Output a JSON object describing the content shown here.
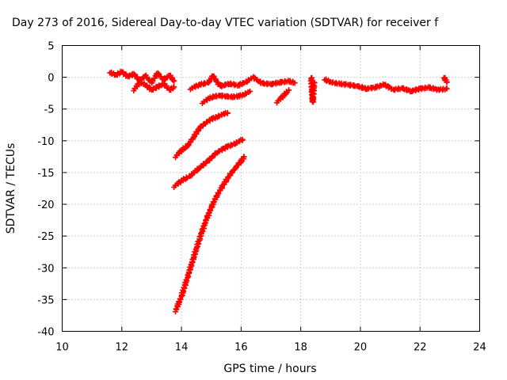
{
  "chart_data": {
    "type": "scatter",
    "title": "Day 273 of 2016, Sidereal Day-to-day VTEC variation (SDTVAR) for receiver f",
    "xlabel": "GPS time / hours",
    "ylabel": "SDTVAR / TECUs",
    "xlim": [
      10,
      24
    ],
    "ylim": [
      -40,
      5
    ],
    "xticks": [
      "10",
      "12",
      "14",
      "16",
      "18",
      "20",
      "22",
      "24"
    ],
    "yticks": [
      "5",
      "0",
      "-5",
      "-10",
      "-15",
      "-20",
      "-25",
      "-30",
      "-35",
      "-40"
    ],
    "grid": true,
    "marker": "plus",
    "color": "#ff0000",
    "series": [
      {
        "x": [
          11.6,
          11.8,
          12.0,
          12.2,
          12.4,
          12.6,
          12.8,
          13.0,
          13.2,
          13.4,
          13.6,
          13.75
        ],
        "y": [
          0.8,
          0.3,
          0.9,
          0.1,
          0.5,
          -0.5,
          0.2,
          -0.8,
          0.6,
          -0.4,
          0.3,
          -0.6
        ]
      },
      {
        "x": [
          12.4,
          12.6,
          12.8,
          13.0,
          13.2,
          13.4,
          13.6,
          13.75
        ],
        "y": [
          -2.0,
          -0.8,
          -1.2,
          -2.0,
          -1.5,
          -1.0,
          -2.0,
          -1.5
        ]
      },
      {
        "x": [
          14.3,
          14.6,
          14.9,
          15.05,
          15.3,
          15.6,
          15.9,
          16.2,
          16.4,
          16.7,
          17.0,
          17.3,
          17.6,
          17.8
        ],
        "y": [
          -1.8,
          -1.2,
          -0.8,
          0.2,
          -1.4,
          -1.0,
          -1.3,
          -0.6,
          0.0,
          -0.9,
          -1.1,
          -0.8,
          -0.6,
          -0.9
        ]
      },
      {
        "x": [
          14.7,
          14.9,
          15.1,
          15.3,
          15.5,
          15.7,
          15.9,
          16.1,
          16.3
        ],
        "y": [
          -4.0,
          -3.4,
          -3.0,
          -2.9,
          -3.0,
          -3.1,
          -3.0,
          -2.7,
          -2.2
        ]
      },
      {
        "x": [
          17.2,
          17.4,
          17.6
        ],
        "y": [
          -3.9,
          -3.0,
          -2.0
        ]
      },
      {
        "x": [
          18.35,
          18.4,
          18.45
        ],
        "y": [
          0.0,
          -4.0,
          -0.8
        ]
      },
      {
        "x": [
          18.8,
          19.0,
          19.3,
          19.6,
          19.9,
          20.2,
          20.5,
          20.8,
          21.1,
          21.4,
          21.7,
          22.0,
          22.3,
          22.6,
          22.9
        ],
        "y": [
          -0.3,
          -0.8,
          -1.0,
          -1.2,
          -1.4,
          -1.8,
          -1.6,
          -1.1,
          -2.0,
          -1.7,
          -2.2,
          -1.8,
          -1.6,
          -2.0,
          -1.8
        ]
      },
      {
        "x": [
          22.8,
          22.9
        ],
        "y": [
          0.0,
          -0.8
        ]
      },
      {
        "x": [
          13.8,
          14.0,
          14.2,
          14.4,
          14.6,
          14.8,
          15.0,
          15.2,
          15.4,
          15.55
        ],
        "y": [
          -12.5,
          -11.5,
          -10.8,
          -9.5,
          -8.0,
          -7.2,
          -6.6,
          -6.2,
          -5.8,
          -5.6
        ]
      },
      {
        "x": [
          13.75,
          14.0,
          14.3,
          14.6,
          14.9,
          15.2,
          15.5,
          15.8,
          16.05
        ],
        "y": [
          -17.2,
          -16.3,
          -15.5,
          -14.3,
          -13.1,
          -11.8,
          -11.0,
          -10.4,
          -9.8
        ]
      },
      {
        "x": [
          13.8,
          14.0,
          14.2,
          14.4,
          14.6,
          14.8,
          15.0,
          15.2,
          15.4,
          15.6,
          15.8,
          16.0,
          16.1
        ],
        "y": [
          -36.8,
          -34.5,
          -31.5,
          -28.5,
          -25.5,
          -22.8,
          -20.5,
          -18.5,
          -17.0,
          -15.5,
          -14.3,
          -13.2,
          -12.5
        ]
      }
    ]
  }
}
